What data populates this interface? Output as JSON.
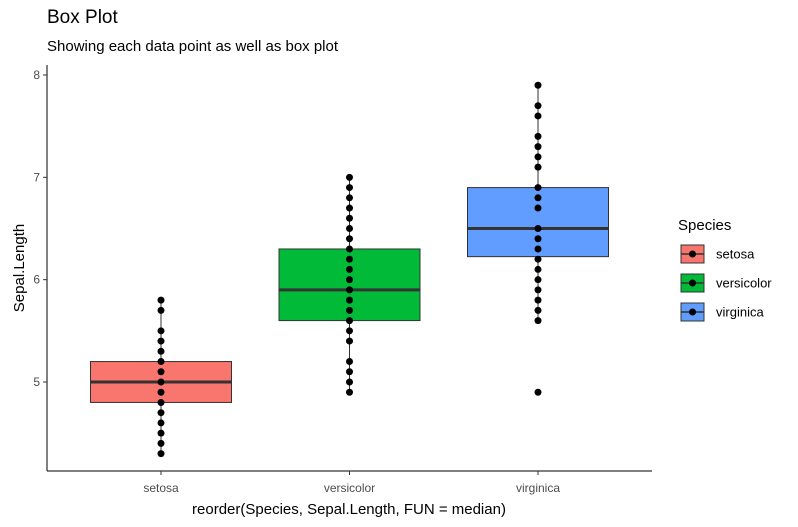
{
  "chart_data": {
    "type": "box",
    "title": "Box Plot",
    "subtitle": "Showing each data point as well as box plot",
    "xlabel": "reorder(Species, Sepal.Length, FUN = median)",
    "ylabel": "Sepal.Length",
    "ylim": [
      4.2,
      8.05
    ],
    "yticks": [
      5,
      6,
      7,
      8
    ],
    "categories": [
      "setosa",
      "versicolor",
      "virginica"
    ],
    "legend": {
      "title": "Species",
      "position": "right"
    },
    "grid": false,
    "series": [
      {
        "name": "setosa",
        "color": "#F8766D",
        "box": {
          "q1": 4.8,
          "median": 5.0,
          "q3": 5.2,
          "whisker_low": 4.3,
          "whisker_high": 5.8
        },
        "points": [
          4.3,
          4.4,
          4.5,
          4.6,
          4.7,
          4.8,
          4.9,
          5.0,
          5.1,
          5.2,
          5.3,
          5.4,
          5.5,
          5.7,
          5.8
        ]
      },
      {
        "name": "versicolor",
        "color": "#00BA38",
        "box": {
          "q1": 5.6,
          "median": 5.9,
          "q3": 6.3,
          "whisker_low": 4.9,
          "whisker_high": 7.0
        },
        "points": [
          4.9,
          5.0,
          5.1,
          5.2,
          5.4,
          5.5,
          5.6,
          5.7,
          5.8,
          5.9,
          6.0,
          6.1,
          6.2,
          6.3,
          6.4,
          6.5,
          6.6,
          6.7,
          6.8,
          6.9,
          7.0
        ]
      },
      {
        "name": "virginica",
        "color": "#619CFF",
        "box": {
          "q1": 6.225,
          "median": 6.5,
          "q3": 6.9,
          "whisker_low": 5.6,
          "whisker_high": 7.9
        },
        "points": [
          4.9,
          5.6,
          5.7,
          5.8,
          5.9,
          6.0,
          6.1,
          6.2,
          6.3,
          6.4,
          6.5,
          6.7,
          6.8,
          6.9,
          7.1,
          7.2,
          7.3,
          7.4,
          7.6,
          7.7,
          7.9
        ]
      }
    ]
  }
}
